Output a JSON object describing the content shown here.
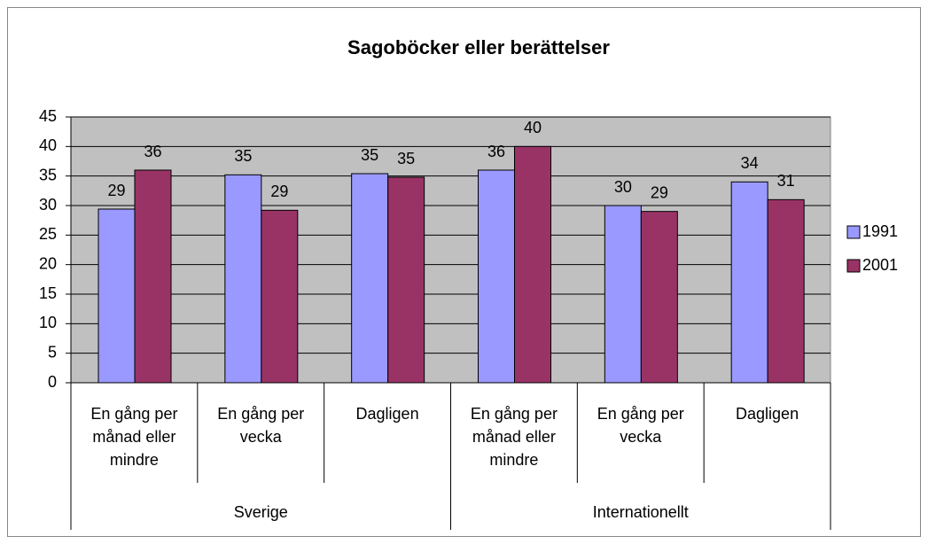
{
  "chart_data": {
    "type": "bar",
    "title": "Sagoböcker eller berättelser",
    "categories": [
      "En gång per månad eller mindre",
      "En gång per vecka",
      "Dagligen",
      "En gång per månad eller mindre",
      "En gång per vecka",
      "Dagligen"
    ],
    "groups": [
      "Sverige",
      "Internationellt"
    ],
    "series": [
      {
        "name": "1991",
        "color": "#9999ff",
        "values": [
          29.4,
          35.2,
          35.4,
          36,
          30,
          34
        ],
        "value_labels": [
          "29",
          "35",
          "35",
          "36",
          "30",
          "34"
        ]
      },
      {
        "name": "2001",
        "color": "#993366",
        "values": [
          36,
          29.2,
          34.8,
          40,
          29,
          31
        ],
        "value_labels": [
          "36",
          "29",
          "35",
          "40",
          "29",
          "31"
        ]
      }
    ],
    "ylim": [
      0,
      45
    ],
    "yticks": [
      0,
      5,
      10,
      15,
      20,
      25,
      30,
      35,
      40,
      45
    ],
    "grid": true,
    "legend": "right"
  }
}
